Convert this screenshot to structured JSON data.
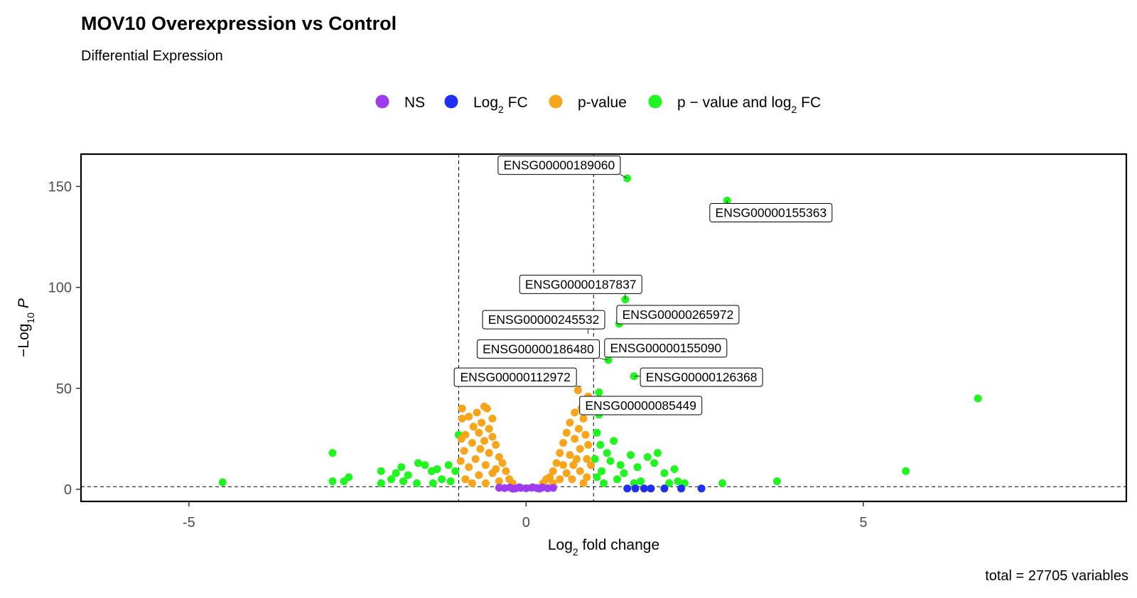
{
  "chart_data": {
    "type": "scatter",
    "title": "MOV10 Overexpression vs Control",
    "subtitle": "Differential Expression",
    "xlabel": {
      "base": "Log",
      "sub": "2",
      "rest": " fold change"
    },
    "ylabel": {
      "pre": "−Log",
      "sub": "10",
      "italic": "P"
    },
    "caption": "total = 27705 variables",
    "xlim": [
      -6.6,
      8.9
    ],
    "ylim": [
      -6,
      166
    ],
    "x_ticks": [
      -5,
      0,
      5
    ],
    "x_tick_labels": [
      "-5",
      "0",
      "5"
    ],
    "y_ticks": [
      0,
      50,
      100,
      150
    ],
    "y_tick_labels": [
      "0",
      "50",
      "100",
      "150"
    ],
    "fc_cutoff": 1,
    "p_cutoff_log10": 1.3,
    "legend_position": "top",
    "legend": [
      {
        "key": "NS",
        "color": "#a03cf0",
        "parts": [
          [
            "NS",
            ""
          ]
        ]
      },
      {
        "key": "Log2FC",
        "color": "#1f2ff5",
        "parts": [
          [
            "Log",
            ""
          ],
          [
            "2",
            "sub"
          ],
          [
            " FC",
            ""
          ]
        ]
      },
      {
        "key": "p-value",
        "color": "#f9a51b",
        "parts": [
          [
            "p-value",
            ""
          ]
        ]
      },
      {
        "key": "both",
        "color": "#1ff51f",
        "parts": [
          [
            "p − value and log",
            ""
          ],
          [
            "2",
            "sub"
          ],
          [
            " FC",
            ""
          ]
        ]
      }
    ],
    "series": [
      {
        "key": "both",
        "color": "#1ff51f",
        "points": [
          [
            1.5,
            154
          ],
          [
            2.98,
            143
          ],
          [
            1.47,
            94
          ],
          [
            1.38,
            82
          ],
          [
            1.22,
            70
          ],
          [
            1.22,
            64
          ],
          [
            1.6,
            56
          ],
          [
            1.08,
            48
          ],
          [
            1.08,
            37
          ],
          [
            6.7,
            45
          ],
          [
            5.63,
            9
          ],
          [
            3.72,
            4
          ],
          [
            2.91,
            3
          ],
          [
            -4.5,
            3.5
          ],
          [
            -2.87,
            18
          ],
          [
            -2.87,
            4
          ],
          [
            -2.7,
            4
          ],
          [
            -2.63,
            6
          ],
          [
            -2.15,
            9
          ],
          [
            -2.15,
            3
          ],
          [
            -1.93,
            8
          ],
          [
            -1.85,
            11
          ],
          [
            -1.75,
            7
          ],
          [
            -1.6,
            13
          ],
          [
            -1.5,
            12
          ],
          [
            -1.4,
            9
          ],
          [
            -1.32,
            10
          ],
          [
            -1.25,
            5
          ],
          [
            -1.15,
            12
          ],
          [
            -1.05,
            9
          ],
          [
            -1.0,
            27
          ],
          [
            -1.12,
            4
          ],
          [
            -1.38,
            3
          ],
          [
            -1.62,
            3
          ],
          [
            -1.82,
            4
          ],
          [
            -2.0,
            5
          ],
          [
            1.05,
            28
          ],
          [
            1.1,
            22
          ],
          [
            1.3,
            24
          ],
          [
            1.2,
            18
          ],
          [
            1.25,
            14
          ],
          [
            1.4,
            12
          ],
          [
            1.55,
            17
          ],
          [
            1.65,
            11
          ],
          [
            1.8,
            16
          ],
          [
            1.9,
            13
          ],
          [
            1.95,
            18
          ],
          [
            2.05,
            8
          ],
          [
            2.2,
            10
          ],
          [
            2.25,
            4
          ],
          [
            2.35,
            3
          ],
          [
            2.12,
            3
          ],
          [
            1.7,
            4
          ],
          [
            1.45,
            8
          ],
          [
            1.12,
            9
          ],
          [
            1.35,
            5
          ],
          [
            1.6,
            3
          ],
          [
            1.05,
            6
          ],
          [
            1.02,
            15
          ],
          [
            1.15,
            3
          ]
        ]
      },
      {
        "key": "p-value",
        "color": "#f9a51b",
        "points": [
          [
            0.77,
            49
          ],
          [
            0.92,
            46
          ],
          [
            0.9,
            42
          ],
          [
            0.82,
            40
          ],
          [
            0.72,
            38
          ],
          [
            0.95,
            39
          ],
          [
            0.85,
            35
          ],
          [
            0.65,
            33
          ],
          [
            0.78,
            30
          ],
          [
            0.6,
            28
          ],
          [
            0.88,
            27
          ],
          [
            0.72,
            25
          ],
          [
            0.55,
            23
          ],
          [
            0.8,
            20
          ],
          [
            0.5,
            18
          ],
          [
            0.65,
            17
          ],
          [
            0.9,
            15
          ],
          [
            0.45,
            13
          ],
          [
            0.7,
            12
          ],
          [
            0.4,
            9
          ],
          [
            0.6,
            8
          ],
          [
            0.35,
            6
          ],
          [
            0.5,
            5
          ],
          [
            0.25,
            3
          ],
          [
            0.4,
            3
          ],
          [
            0.9,
            6
          ],
          [
            0.8,
            9
          ],
          [
            0.92,
            22
          ],
          [
            0.75,
            15
          ],
          [
            0.55,
            12
          ],
          [
            0.3,
            5
          ],
          [
            0.85,
            3
          ],
          [
            0.68,
            5
          ],
          [
            0.96,
            12
          ],
          [
            -0.95,
            40
          ],
          [
            -0.62,
            41
          ],
          [
            -0.58,
            40
          ],
          [
            -0.73,
            38
          ],
          [
            -0.85,
            36
          ],
          [
            -0.5,
            35
          ],
          [
            -0.95,
            35
          ],
          [
            -0.66,
            33
          ],
          [
            -0.78,
            31
          ],
          [
            -0.55,
            30
          ],
          [
            -0.7,
            28
          ],
          [
            -0.9,
            27
          ],
          [
            -0.5,
            26
          ],
          [
            -0.62,
            24
          ],
          [
            -0.8,
            23
          ],
          [
            -0.45,
            22
          ],
          [
            -0.68,
            20
          ],
          [
            -0.92,
            19
          ],
          [
            -0.55,
            18
          ],
          [
            -0.4,
            16
          ],
          [
            -0.75,
            15
          ],
          [
            -0.35,
            13
          ],
          [
            -0.6,
            12
          ],
          [
            -0.85,
            11
          ],
          [
            -0.3,
            9
          ],
          [
            -0.5,
            8
          ],
          [
            -0.7,
            7
          ],
          [
            -0.25,
            5
          ],
          [
            -0.4,
            4
          ],
          [
            -0.9,
            5
          ],
          [
            -0.6,
            3
          ],
          [
            -0.2,
            3
          ],
          [
            -0.97,
            14
          ],
          [
            -0.8,
            3
          ],
          [
            -0.45,
            10
          ],
          [
            -0.96,
            25
          ]
        ]
      },
      {
        "key": "Log2FC",
        "color": "#1f2ff5",
        "points": [
          [
            1.5,
            0.4
          ],
          [
            1.62,
            0.4
          ],
          [
            1.75,
            0.4
          ],
          [
            1.85,
            0.4
          ],
          [
            2.05,
            0.4
          ],
          [
            2.3,
            0.4
          ],
          [
            2.6,
            0.4
          ]
        ]
      },
      {
        "key": "NS",
        "color": "#a03cf0",
        "points": [
          [
            -0.4,
            0.8
          ],
          [
            -0.32,
            0.6
          ],
          [
            -0.24,
            0.9
          ],
          [
            -0.16,
            0.4
          ],
          [
            -0.08,
            0.7
          ],
          [
            0.0,
            0.5
          ],
          [
            0.08,
            0.8
          ],
          [
            0.16,
            0.6
          ],
          [
            0.24,
            0.9
          ],
          [
            0.32,
            0.5
          ],
          [
            0.4,
            0.7
          ],
          [
            -0.2,
            0.3
          ],
          [
            0.2,
            0.3
          ],
          [
            0.1,
            1.0
          ],
          [
            -0.1,
            1.0
          ]
        ]
      }
    ],
    "labels": [
      {
        "text": "ENSG00000189060",
        "point": [
          1.5,
          154
        ],
        "box_center": [
          0.49,
          160.5
        ]
      },
      {
        "text": "ENSG00000155363",
        "point": [
          2.98,
          143
        ],
        "box_center": [
          3.63,
          137
        ]
      },
      {
        "text": "ENSG00000187837",
        "point": [
          1.47,
          94
        ],
        "box_center": [
          0.81,
          101.5
        ]
      },
      {
        "text": "ENSG00000265972",
        "point": [
          1.38,
          82
        ],
        "box_center": [
          2.25,
          86.5
        ]
      },
      {
        "text": "ENSG00000245532",
        "point": [
          0.92,
          77
        ],
        "box_center": [
          0.26,
          84
        ]
      },
      {
        "text": "ENSG00000155090",
        "point": [
          1.22,
          70
        ],
        "box_center": [
          2.07,
          70
        ]
      },
      {
        "text": "ENSG00000186480",
        "point": [
          1.22,
          64
        ],
        "box_center": [
          0.18,
          69.5
        ]
      },
      {
        "text": "ENSG00000126368",
        "point": [
          1.6,
          56
        ],
        "box_center": [
          2.6,
          55.5
        ]
      },
      {
        "text": "ENSG00000112972",
        "point": [
          0.82,
          51
        ],
        "box_center": [
          -0.16,
          55.5
        ]
      },
      {
        "text": "ENSG00000085449",
        "point": [
          1.08,
          46
        ],
        "box_center": [
          1.7,
          41.5
        ]
      }
    ]
  }
}
